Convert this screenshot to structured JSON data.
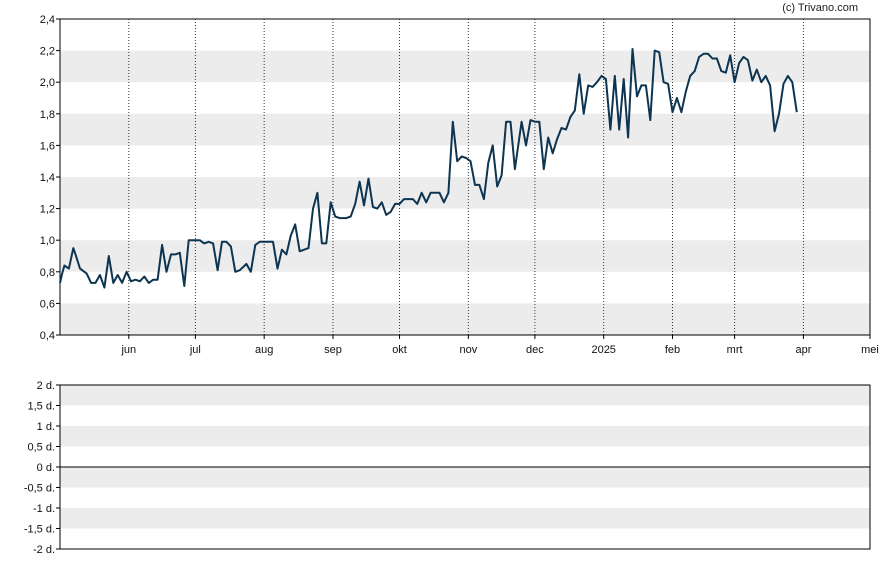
{
  "credit": "(c) Trivano.com",
  "chart_data": [
    {
      "type": "line",
      "title": "",
      "xlabel": "",
      "ylabel": "",
      "x_ticks": [
        {
          "label": "jun",
          "date": "2024-06-01"
        },
        {
          "label": "jul",
          "date": "2024-07-01"
        },
        {
          "label": "aug",
          "date": "2024-08-01"
        },
        {
          "label": "sep",
          "date": "2024-09-01"
        },
        {
          "label": "okt",
          "date": "2024-10-01"
        },
        {
          "label": "nov",
          "date": "2024-11-01"
        },
        {
          "label": "dec",
          "date": "2024-12-01"
        },
        {
          "label": "2025",
          "date": "2025-01-01"
        },
        {
          "label": "feb",
          "date": "2025-02-01"
        },
        {
          "label": "mrt",
          "date": "2025-03-01"
        },
        {
          "label": "apr",
          "date": "2025-04-01"
        },
        {
          "label": "mei",
          "date": "2025-05-01"
        }
      ],
      "y_ticks": [
        "0,4",
        "0,6",
        "0,8",
        "1,0",
        "1,2",
        "1,4",
        "1,6",
        "1,8",
        "2,0",
        "2,2",
        "2,4"
      ],
      "xlim": [
        "2024-05-01",
        "2025-05-01"
      ],
      "ylim": [
        0.4,
        2.4
      ],
      "grid": "alternating horizontal bands, dotted vertical lines at month ticks",
      "line_color": "#0d3450",
      "band_color": "#ececec",
      "series": [
        {
          "points": [
            [
              "2024-05-01",
              0.73
            ],
            [
              "2024-05-02",
              0.79
            ],
            [
              "2024-05-03",
              0.84
            ],
            [
              "2024-05-05",
              0.82
            ],
            [
              "2024-05-07",
              0.95
            ],
            [
              "2024-05-08",
              0.91
            ],
            [
              "2024-05-10",
              0.82
            ],
            [
              "2024-05-13",
              0.79
            ],
            [
              "2024-05-14",
              0.76
            ],
            [
              "2024-05-15",
              0.73
            ],
            [
              "2024-05-17",
              0.73
            ],
            [
              "2024-05-19",
              0.78
            ],
            [
              "2024-05-21",
              0.7
            ],
            [
              "2024-05-22",
              0.8
            ],
            [
              "2024-05-23",
              0.9
            ],
            [
              "2024-05-25",
              0.73
            ],
            [
              "2024-05-27",
              0.78
            ],
            [
              "2024-05-29",
              0.73
            ],
            [
              "2024-05-31",
              0.8
            ],
            [
              "2024-06-02",
              0.74
            ],
            [
              "2024-06-04",
              0.75
            ],
            [
              "2024-06-06",
              0.74
            ],
            [
              "2024-06-08",
              0.77
            ],
            [
              "2024-06-10",
              0.73
            ],
            [
              "2024-06-12",
              0.75
            ],
            [
              "2024-06-14",
              0.75
            ],
            [
              "2024-06-16",
              0.97
            ],
            [
              "2024-06-18",
              0.8
            ],
            [
              "2024-06-20",
              0.91
            ],
            [
              "2024-06-22",
              0.91
            ],
            [
              "2024-06-24",
              0.92
            ],
            [
              "2024-06-26",
              0.71
            ],
            [
              "2024-06-28",
              1.0
            ],
            [
              "2024-07-01",
              1.0
            ],
            [
              "2024-07-03",
              1.0
            ],
            [
              "2024-07-05",
              0.98
            ],
            [
              "2024-07-07",
              0.99
            ],
            [
              "2024-07-09",
              0.98
            ],
            [
              "2024-07-11",
              0.81
            ],
            [
              "2024-07-13",
              0.99
            ],
            [
              "2024-07-15",
              0.99
            ],
            [
              "2024-07-17",
              0.96
            ],
            [
              "2024-07-19",
              0.8
            ],
            [
              "2024-07-21",
              0.81
            ],
            [
              "2024-07-24",
              0.85
            ],
            [
              "2024-07-26",
              0.8
            ],
            [
              "2024-07-28",
              0.97
            ],
            [
              "2024-07-30",
              0.99
            ],
            [
              "2024-08-01",
              0.99
            ],
            [
              "2024-08-03",
              0.99
            ],
            [
              "2024-08-05",
              0.99
            ],
            [
              "2024-08-07",
              0.82
            ],
            [
              "2024-08-09",
              0.94
            ],
            [
              "2024-08-11",
              0.91
            ],
            [
              "2024-08-13",
              1.03
            ],
            [
              "2024-08-15",
              1.1
            ],
            [
              "2024-08-17",
              0.93
            ],
            [
              "2024-08-19",
              0.94
            ],
            [
              "2024-08-21",
              0.95
            ],
            [
              "2024-08-23",
              1.2
            ],
            [
              "2024-08-25",
              1.3
            ],
            [
              "2024-08-27",
              0.98
            ],
            [
              "2024-08-29",
              0.98
            ],
            [
              "2024-08-31",
              1.24
            ],
            [
              "2024-09-02",
              1.15
            ],
            [
              "2024-09-04",
              1.14
            ],
            [
              "2024-09-07",
              1.14
            ],
            [
              "2024-09-09",
              1.15
            ],
            [
              "2024-09-11",
              1.23
            ],
            [
              "2024-09-13",
              1.37
            ],
            [
              "2024-09-15",
              1.22
            ],
            [
              "2024-09-17",
              1.39
            ],
            [
              "2024-09-19",
              1.21
            ],
            [
              "2024-09-21",
              1.2
            ],
            [
              "2024-09-23",
              1.24
            ],
            [
              "2024-09-25",
              1.16
            ],
            [
              "2024-09-27",
              1.18
            ],
            [
              "2024-09-29",
              1.23
            ],
            [
              "2024-10-01",
              1.23
            ],
            [
              "2024-10-03",
              1.26
            ],
            [
              "2024-10-05",
              1.26
            ],
            [
              "2024-10-07",
              1.26
            ],
            [
              "2024-10-09",
              1.23
            ],
            [
              "2024-10-11",
              1.3
            ],
            [
              "2024-10-13",
              1.24
            ],
            [
              "2024-10-15",
              1.3
            ],
            [
              "2024-10-17",
              1.3
            ],
            [
              "2024-10-19",
              1.3
            ],
            [
              "2024-10-21",
              1.24
            ],
            [
              "2024-10-23",
              1.3
            ],
            [
              "2024-10-25",
              1.75
            ],
            [
              "2024-10-27",
              1.5
            ],
            [
              "2024-10-29",
              1.53
            ],
            [
              "2024-10-31",
              1.52
            ],
            [
              "2024-11-02",
              1.5
            ],
            [
              "2024-11-04",
              1.35
            ],
            [
              "2024-11-06",
              1.35
            ],
            [
              "2024-11-08",
              1.26
            ],
            [
              "2024-11-10",
              1.49
            ],
            [
              "2024-11-12",
              1.6
            ],
            [
              "2024-11-14",
              1.34
            ],
            [
              "2024-11-16",
              1.41
            ],
            [
              "2024-11-18",
              1.75
            ],
            [
              "2024-11-20",
              1.75
            ],
            [
              "2024-11-22",
              1.45
            ],
            [
              "2024-11-25",
              1.75
            ],
            [
              "2024-11-27",
              1.6
            ],
            [
              "2024-11-29",
              1.76
            ],
            [
              "2024-12-01",
              1.75
            ],
            [
              "2024-12-03",
              1.75
            ],
            [
              "2024-12-05",
              1.45
            ],
            [
              "2024-12-07",
              1.65
            ],
            [
              "2024-12-09",
              1.55
            ],
            [
              "2024-12-11",
              1.64
            ],
            [
              "2024-12-13",
              1.71
            ],
            [
              "2024-12-15",
              1.7
            ],
            [
              "2024-12-17",
              1.78
            ],
            [
              "2024-12-19",
              1.82
            ],
            [
              "2024-12-21",
              2.05
            ],
            [
              "2024-12-23",
              1.8
            ],
            [
              "2024-12-25",
              1.98
            ],
            [
              "2024-12-27",
              1.97
            ],
            [
              "2024-12-29",
              2.0
            ],
            [
              "2024-12-31",
              2.04
            ],
            [
              "2025-01-02",
              2.02
            ],
            [
              "2025-01-04",
              1.7
            ],
            [
              "2025-01-06",
              2.04
            ],
            [
              "2025-01-08",
              1.7
            ],
            [
              "2025-01-10",
              2.02
            ],
            [
              "2025-01-12",
              1.65
            ],
            [
              "2025-01-14",
              2.21
            ],
            [
              "2025-01-16",
              1.91
            ],
            [
              "2025-01-18",
              1.98
            ],
            [
              "2025-01-20",
              1.98
            ],
            [
              "2025-01-22",
              1.76
            ],
            [
              "2025-01-24",
              2.2
            ],
            [
              "2025-01-26",
              2.19
            ],
            [
              "2025-01-28",
              2.0
            ],
            [
              "2025-01-30",
              1.99
            ],
            [
              "2025-02-01",
              1.81
            ],
            [
              "2025-02-03",
              1.9
            ],
            [
              "2025-02-05",
              1.81
            ],
            [
              "2025-02-07",
              1.94
            ],
            [
              "2025-02-09",
              2.04
            ],
            [
              "2025-02-11",
              2.07
            ],
            [
              "2025-02-13",
              2.16
            ],
            [
              "2025-02-15",
              2.18
            ],
            [
              "2025-02-17",
              2.18
            ],
            [
              "2025-02-19",
              2.15
            ],
            [
              "2025-02-21",
              2.15
            ],
            [
              "2025-02-23",
              2.07
            ],
            [
              "2025-02-25",
              2.06
            ],
            [
              "2025-02-27",
              2.17
            ],
            [
              "2025-03-01",
              2.0
            ],
            [
              "2025-03-03",
              2.12
            ],
            [
              "2025-03-05",
              2.16
            ],
            [
              "2025-03-07",
              2.14
            ],
            [
              "2025-03-09",
              2.01
            ],
            [
              "2025-03-11",
              2.08
            ],
            [
              "2025-03-13",
              2.0
            ],
            [
              "2025-03-15",
              2.04
            ],
            [
              "2025-03-17",
              1.98
            ],
            [
              "2025-03-19",
              1.69
            ],
            [
              "2025-03-21",
              1.8
            ],
            [
              "2025-03-23",
              1.99
            ],
            [
              "2025-03-25",
              2.04
            ],
            [
              "2025-03-27",
              2.0
            ],
            [
              "2025-03-29",
              1.81
            ]
          ]
        }
      ]
    },
    {
      "type": "line",
      "title": "",
      "xlabel": "",
      "ylabel": "",
      "y_ticks": [
        "2 d.",
        "1,5 d.",
        "1 d.",
        "0,5 d.",
        "0 d.",
        "-0,5 d.",
        "-1 d.",
        "-1,5 d.",
        "-2 d."
      ],
      "ylim": [
        -2,
        2
      ],
      "grid": "alternating horizontal bands, solid zero line",
      "series": []
    }
  ]
}
